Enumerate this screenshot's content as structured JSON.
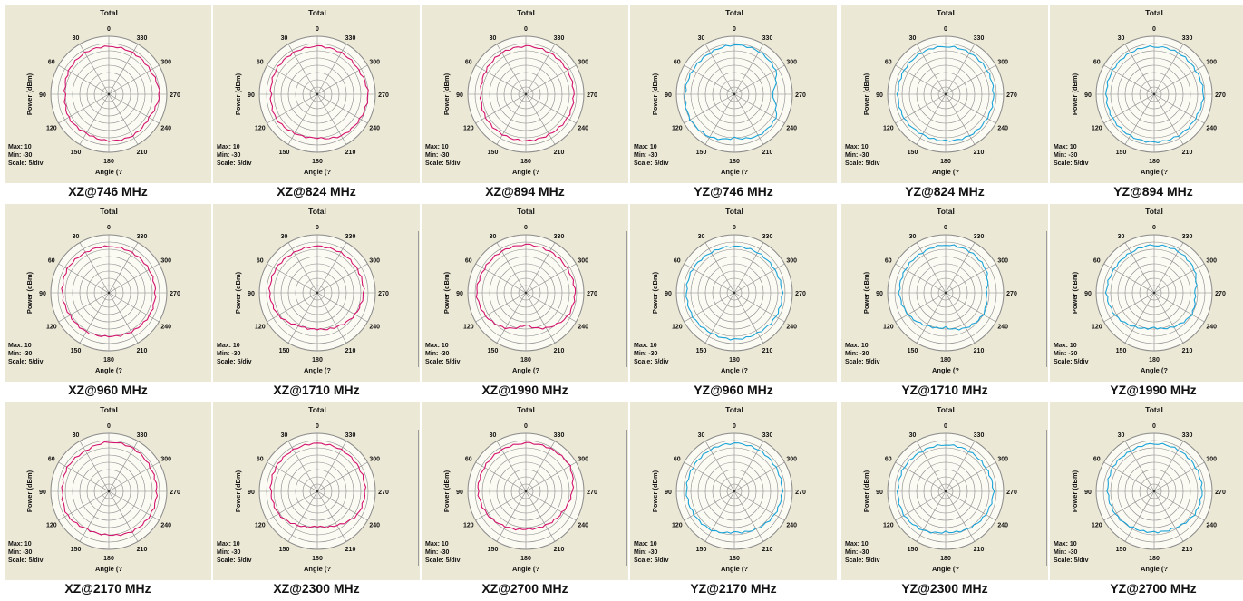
{
  "labels": {
    "plot_title": "Total",
    "ylabel": "Power (dBm)",
    "xlabel": "Angle (?",
    "max": "Max: 10",
    "min": "Min: -30",
    "scale": "Scale: 5/div",
    "angle_labels": [
      "0",
      "30",
      "60",
      "90",
      "120",
      "150",
      "180",
      "210",
      "240",
      "270",
      "300",
      "330"
    ]
  },
  "colors": {
    "panel_bg": "#ece8d6",
    "grid": "#8a8a8a",
    "xz_trace": "#d4146e",
    "yz_trace": "#1aa3d8"
  },
  "chart_data": [
    {
      "type": "polar",
      "caption": "XZ@746 MHz",
      "plane": "XZ",
      "rlim": [
        -30,
        10
      ],
      "theta_deg": [
        0,
        30,
        60,
        90,
        120,
        150,
        180,
        210,
        240,
        270,
        300,
        330
      ],
      "values": [
        3,
        3,
        2,
        0,
        2,
        1,
        2,
        3,
        2,
        5,
        3,
        3
      ]
    },
    {
      "type": "polar",
      "caption": "XZ@824 MHz",
      "plane": "XZ",
      "rlim": [
        -30,
        10
      ],
      "theta_deg": [
        0,
        30,
        60,
        90,
        120,
        150,
        180,
        210,
        240,
        270,
        300,
        330
      ],
      "values": [
        3,
        3,
        3,
        2,
        3,
        1,
        0,
        3,
        4,
        5,
        3,
        3
      ]
    },
    {
      "type": "polar",
      "caption": "XZ@894 MHz",
      "plane": "XZ",
      "rlim": [
        -30,
        10
      ],
      "theta_deg": [
        0,
        30,
        60,
        90,
        120,
        150,
        180,
        210,
        240,
        270,
        300,
        330
      ],
      "values": [
        3,
        3,
        2,
        1,
        2,
        2,
        2,
        2,
        3,
        3,
        3,
        3
      ]
    },
    {
      "type": "polar",
      "caption": "YZ@746 MHz",
      "plane": "YZ",
      "rlim": [
        -30,
        10
      ],
      "theta_deg": [
        0,
        30,
        60,
        90,
        120,
        150,
        180,
        210,
        240,
        270,
        300,
        330
      ],
      "values": [
        4,
        3,
        3,
        4,
        5,
        4,
        0,
        3,
        3,
        -4,
        3,
        4
      ]
    },
    {
      "type": "polar",
      "caption": "YZ@824 MHz",
      "plane": "YZ",
      "rlim": [
        -30,
        10
      ],
      "theta_deg": [
        0,
        30,
        60,
        90,
        120,
        150,
        180,
        210,
        240,
        270,
        300,
        330
      ],
      "values": [
        3,
        3,
        3,
        3,
        3,
        2,
        2,
        3,
        3,
        3,
        3,
        3
      ]
    },
    {
      "type": "polar",
      "caption": "YZ@894 MHz",
      "plane": "YZ",
      "rlim": [
        -30,
        10
      ],
      "theta_deg": [
        0,
        30,
        60,
        90,
        120,
        150,
        180,
        210,
        240,
        270,
        300,
        330
      ],
      "values": [
        3,
        3,
        3,
        3,
        3,
        3,
        3,
        3,
        3,
        4,
        3,
        3
      ]
    },
    {
      "type": "polar",
      "caption": "XZ@960 MHz",
      "plane": "XZ",
      "rlim": [
        -30,
        10
      ],
      "theta_deg": [
        0,
        30,
        60,
        90,
        120,
        150,
        180,
        210,
        240,
        270,
        300,
        330
      ],
      "values": [
        2,
        2,
        3,
        2,
        1,
        1,
        0,
        1,
        2,
        2,
        2,
        2
      ]
    },
    {
      "type": "polar",
      "caption": "XZ@1710 MHz",
      "plane": "XZ",
      "rlim": [
        -30,
        10
      ],
      "theta_deg": [
        0,
        30,
        60,
        90,
        120,
        150,
        180,
        210,
        240,
        270,
        300,
        330
      ],
      "values": [
        2,
        2,
        3,
        3,
        1,
        -4,
        -5,
        -3,
        0,
        2,
        2,
        2
      ]
    },
    {
      "type": "polar",
      "caption": "XZ@1990 MHz",
      "plane": "XZ",
      "rlim": [
        -30,
        10
      ],
      "theta_deg": [
        0,
        30,
        60,
        90,
        120,
        150,
        180,
        210,
        240,
        270,
        300,
        330
      ],
      "values": [
        3,
        3,
        3,
        4,
        2,
        -2,
        -8,
        -2,
        3,
        4,
        3,
        3
      ]
    },
    {
      "type": "polar",
      "caption": "YZ@960 MHz",
      "plane": "YZ",
      "rlim": [
        -30,
        10
      ],
      "theta_deg": [
        0,
        30,
        60,
        90,
        120,
        150,
        180,
        210,
        240,
        270,
        300,
        330
      ],
      "values": [
        2,
        2,
        3,
        3,
        3,
        2,
        2,
        2,
        3,
        3,
        2,
        2
      ]
    },
    {
      "type": "polar",
      "caption": "YZ@1710 MHz",
      "plane": "YZ",
      "rlim": [
        -30,
        10
      ],
      "theta_deg": [
        0,
        30,
        60,
        90,
        120,
        150,
        180,
        210,
        240,
        270,
        300,
        330
      ],
      "values": [
        3,
        2,
        2,
        2,
        0,
        -4,
        -6,
        -2,
        0,
        -2,
        2,
        3
      ]
    },
    {
      "type": "polar",
      "caption": "YZ@1990 MHz",
      "plane": "YZ",
      "rlim": [
        -30,
        10
      ],
      "theta_deg": [
        0,
        30,
        60,
        90,
        120,
        150,
        180,
        210,
        240,
        270,
        300,
        330
      ],
      "values": [
        3,
        2,
        2,
        3,
        1,
        -3,
        -6,
        -3,
        0,
        -2,
        2,
        3
      ]
    },
    {
      "type": "polar",
      "caption": "XZ@2170 MHz",
      "plane": "XZ",
      "rlim": [
        -30,
        10
      ],
      "theta_deg": [
        0,
        30,
        60,
        90,
        120,
        150,
        180,
        210,
        240,
        270,
        300,
        330
      ],
      "values": [
        4,
        2,
        3,
        2,
        3,
        0,
        0,
        2,
        3,
        3,
        3,
        4
      ]
    },
    {
      "type": "polar",
      "caption": "XZ@2300 MHz",
      "plane": "XZ",
      "rlim": [
        -30,
        10
      ],
      "theta_deg": [
        0,
        30,
        60,
        90,
        120,
        150,
        180,
        210,
        240,
        270,
        300,
        330
      ],
      "values": [
        3,
        3,
        3,
        2,
        1,
        -3,
        -6,
        -3,
        2,
        3,
        3,
        3
      ]
    },
    {
      "type": "polar",
      "caption": "XZ@2700 MHz",
      "plane": "XZ",
      "rlim": [
        -30,
        10
      ],
      "theta_deg": [
        0,
        30,
        60,
        90,
        120,
        150,
        180,
        210,
        240,
        270,
        300,
        330
      ],
      "values": [
        3,
        3,
        3,
        3,
        1,
        -2,
        -4,
        -3,
        -1,
        2,
        5,
        4
      ]
    },
    {
      "type": "polar",
      "caption": "YZ@2170 MHz",
      "plane": "YZ",
      "rlim": [
        -30,
        10
      ],
      "theta_deg": [
        0,
        30,
        60,
        90,
        120,
        150,
        180,
        210,
        240,
        270,
        300,
        330
      ],
      "values": [
        3,
        3,
        3,
        3,
        2,
        1,
        -2,
        0,
        2,
        3,
        3,
        3
      ]
    },
    {
      "type": "polar",
      "caption": "YZ@2300 MHz",
      "plane": "YZ",
      "rlim": [
        -30,
        10
      ],
      "theta_deg": [
        0,
        30,
        60,
        90,
        120,
        150,
        180,
        210,
        240,
        270,
        300,
        330
      ],
      "values": [
        2,
        2,
        3,
        3,
        3,
        1,
        -2,
        0,
        2,
        3,
        2,
        2
      ]
    },
    {
      "type": "polar",
      "caption": "YZ@2700 MHz",
      "plane": "YZ",
      "rlim": [
        -30,
        10
      ],
      "theta_deg": [
        0,
        30,
        60,
        90,
        120,
        150,
        180,
        210,
        240,
        270,
        300,
        330
      ],
      "values": [
        3,
        2,
        3,
        2,
        1,
        -1,
        -2,
        -1,
        2,
        3,
        3,
        3
      ]
    }
  ]
}
